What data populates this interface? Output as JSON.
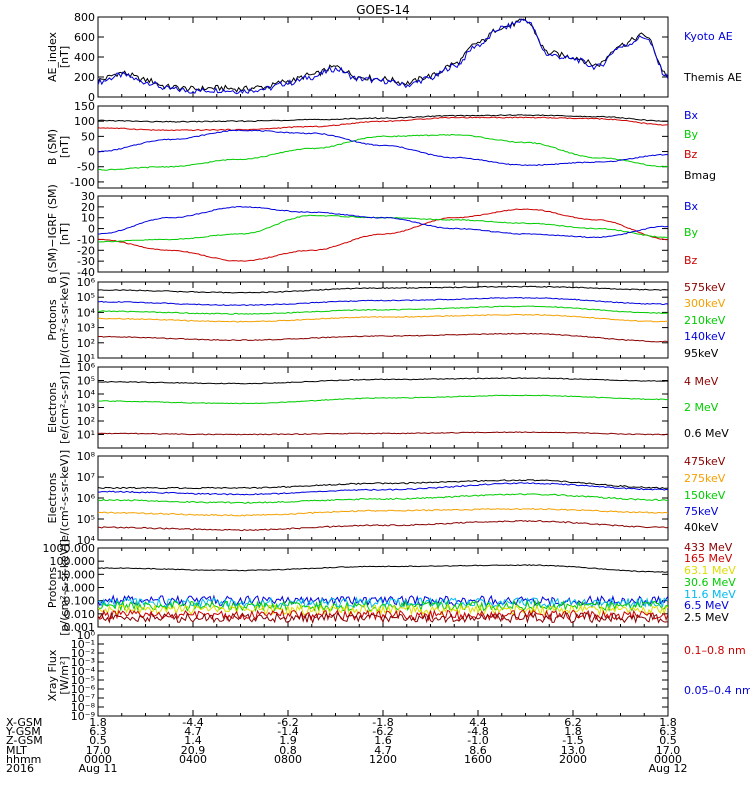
{
  "title": "GOES-14",
  "colors": {
    "axis": "#000000",
    "black": "#000000",
    "blue": "#0000dd",
    "red": "#cc0000",
    "green": "#00cc00",
    "orange": "#f5a000",
    "darkred": "#880000",
    "cyan": "#00bbee",
    "yellow": "#dddd00"
  },
  "chart_data": [
    {
      "type": "line",
      "ylabel": "AE_index\n[nT]",
      "ylim": [
        0,
        800
      ],
      "yscale": "linear",
      "yticks": [
        0,
        200,
        400,
        600,
        800
      ],
      "yticklabels": [
        "0",
        "200",
        "400",
        "600",
        "800"
      ],
      "series": [
        {
          "name": "Kyoto AE",
          "color": "blue",
          "x": [
            0,
            1,
            2,
            3,
            4,
            5,
            6,
            7,
            8,
            9,
            10,
            11,
            12,
            13,
            14,
            15,
            16,
            17,
            18,
            19,
            20,
            21,
            22,
            23,
            24
          ],
          "y": [
            150,
            220,
            150,
            80,
            60,
            70,
            60,
            80,
            140,
            200,
            280,
            180,
            160,
            120,
            190,
            310,
            520,
            690,
            770,
            420,
            380,
            300,
            500,
            600,
            200
          ]
        },
        {
          "name": "Themis AE",
          "color": "black",
          "x": [
            0,
            1,
            2,
            3,
            4,
            5,
            6,
            7,
            8,
            9,
            10,
            11,
            12,
            13,
            14,
            15,
            16,
            17,
            18,
            19,
            20,
            21,
            22,
            23,
            24
          ],
          "y": [
            170,
            240,
            170,
            100,
            80,
            90,
            80,
            100,
            160,
            220,
            300,
            200,
            180,
            140,
            210,
            330,
            540,
            700,
            760,
            440,
            400,
            320,
            520,
            620,
            220
          ]
        }
      ]
    },
    {
      "type": "line",
      "ylabel": "B (SM)\n[nT]",
      "ylim": [
        -120,
        150
      ],
      "yscale": "linear",
      "yticks": [
        -100,
        -50,
        0,
        50,
        100,
        150
      ],
      "yticklabels": [
        "-100",
        "-50",
        "0",
        "50",
        "100",
        "150"
      ],
      "series": [
        {
          "name": "Bx",
          "color": "blue",
          "x": [
            0,
            3,
            6,
            9,
            12,
            15,
            18,
            21,
            24
          ],
          "y": [
            0,
            40,
            70,
            60,
            20,
            -20,
            -45,
            -35,
            -10
          ]
        },
        {
          "name": "By",
          "color": "green",
          "x": [
            0,
            3,
            6,
            9,
            12,
            15,
            18,
            21,
            24
          ],
          "y": [
            -60,
            -50,
            -25,
            10,
            50,
            55,
            30,
            -20,
            -50
          ]
        },
        {
          "name": "Bz",
          "color": "red",
          "x": [
            0,
            3,
            6,
            9,
            12,
            15,
            18,
            21,
            24
          ],
          "y": [
            78,
            70,
            72,
            82,
            100,
            112,
            112,
            108,
            88
          ]
        },
        {
          "name": "Bmag",
          "color": "black",
          "x": [
            0,
            3,
            6,
            9,
            12,
            15,
            18,
            21,
            24
          ],
          "y": [
            102,
            98,
            100,
            105,
            110,
            118,
            120,
            115,
            100
          ]
        }
      ]
    },
    {
      "type": "line",
      "ylabel": "B (SM)−IGRF (SM)\n[nT]",
      "ylim": [
        -40,
        30
      ],
      "yscale": "linear",
      "yticks": [
        -40,
        -30,
        -20,
        -10,
        0,
        10,
        20,
        30
      ],
      "yticklabels": [
        "-40",
        "-30",
        "-20",
        "-10",
        "0",
        "10",
        "20",
        "30"
      ],
      "series": [
        {
          "name": "Bx",
          "color": "blue",
          "x": [
            0,
            3,
            6,
            9,
            12,
            15,
            18,
            21,
            24
          ],
          "y": [
            -5,
            10,
            20,
            15,
            10,
            0,
            -5,
            -8,
            2
          ]
        },
        {
          "name": "By",
          "color": "green",
          "x": [
            0,
            3,
            6,
            9,
            12,
            15,
            18,
            21,
            24
          ],
          "y": [
            -12,
            -10,
            -5,
            12,
            10,
            8,
            5,
            0,
            -8
          ]
        },
        {
          "name": "Bz",
          "color": "red",
          "x": [
            0,
            3,
            6,
            9,
            12,
            15,
            18,
            21,
            24
          ],
          "y": [
            -10,
            -20,
            -30,
            -20,
            -5,
            10,
            18,
            8,
            -10
          ]
        }
      ]
    },
    {
      "type": "line",
      "ylabel": "Protons\n[p/(cm²-s-sr-keV)]",
      "ylim": [
        10,
        1000000
      ],
      "yscale": "log",
      "yticks": [
        10,
        100,
        1000,
        10000,
        100000,
        1000000
      ],
      "yticklabels": [
        "10¹",
        "10²",
        "10³",
        "10⁴",
        "10⁵",
        "10⁶"
      ],
      "series": [
        {
          "name": "575keV",
          "color": "darkred",
          "x": [
            0,
            6,
            12,
            18,
            24
          ],
          "y": [
            250,
            150,
            280,
            400,
            120
          ]
        },
        {
          "name": "300keV",
          "color": "orange",
          "x": [
            0,
            6,
            12,
            18,
            24
          ],
          "y": [
            4000,
            2500,
            5000,
            7000,
            2500
          ]
        },
        {
          "name": "210keV",
          "color": "green",
          "x": [
            0,
            6,
            12,
            18,
            24
          ],
          "y": [
            12000,
            8000,
            15000,
            25000,
            9000
          ]
        },
        {
          "name": "140keV",
          "color": "blue",
          "x": [
            0,
            6,
            12,
            18,
            24
          ],
          "y": [
            50000,
            30000,
            60000,
            90000,
            35000
          ]
        },
        {
          "name": "95keV",
          "color": "black",
          "x": [
            0,
            6,
            12,
            18,
            24
          ],
          "y": [
            300000,
            200000,
            400000,
            500000,
            300000
          ]
        }
      ]
    },
    {
      "type": "line",
      "ylabel": "Electrons\n[e/(cm²-s-sr)]",
      "ylim": [
        1,
        1000000
      ],
      "yscale": "log",
      "yticks": [
        10,
        100,
        1000,
        10000,
        100000,
        1000000
      ],
      "yticklabels": [
        "10¹",
        "10²",
        "10³",
        "10⁴",
        "10⁵",
        "10⁶"
      ],
      "series": [
        {
          "name": "4 MeV",
          "color": "darkred",
          "x": [
            0,
            6,
            12,
            18,
            24
          ],
          "y": [
            12,
            10,
            12,
            15,
            10
          ]
        },
        {
          "name": "2 MeV",
          "color": "green",
          "x": [
            0,
            6,
            12,
            18,
            24
          ],
          "y": [
            3000,
            2000,
            5000,
            8000,
            4000
          ]
        },
        {
          "name": "0.6 MeV",
          "color": "black",
          "x": [
            0,
            6,
            12,
            18,
            24
          ],
          "y": [
            80000,
            60000,
            120000,
            150000,
            90000
          ]
        }
      ]
    },
    {
      "type": "line",
      "ylabel": "Electrons\n[e/(cm²-s-sr-keV)]",
      "ylim": [
        10000,
        100000000
      ],
      "yscale": "log",
      "yticks": [
        10000,
        100000,
        1000000,
        10000000,
        100000000
      ],
      "yticklabels": [
        "10⁴",
        "10⁵",
        "10⁶",
        "10⁷",
        "10⁸"
      ],
      "series": [
        {
          "name": "475keV",
          "color": "darkred",
          "x": [
            0,
            6,
            12,
            18,
            24
          ],
          "y": [
            40000,
            30000,
            50000,
            80000,
            40000
          ]
        },
        {
          "name": "275keV",
          "color": "orange",
          "x": [
            0,
            6,
            12,
            18,
            24
          ],
          "y": [
            200000,
            150000,
            250000,
            300000,
            200000
          ]
        },
        {
          "name": "150keV",
          "color": "green",
          "x": [
            0,
            6,
            12,
            18,
            24
          ],
          "y": [
            800000,
            600000,
            900000,
            1500000,
            800000
          ]
        },
        {
          "name": "75keV",
          "color": "blue",
          "x": [
            0,
            6,
            12,
            18,
            24
          ],
          "y": [
            2000000,
            1500000,
            2500000,
            5000000,
            2500000
          ]
        },
        {
          "name": "40keV",
          "color": "black",
          "x": [
            0,
            6,
            12,
            18,
            24
          ],
          "y": [
            3000000,
            3000000,
            5000000,
            7000000,
            3000000
          ]
        }
      ]
    },
    {
      "type": "line",
      "ylabel": "Protons\n[p/(cm²-s-sr-keV)]",
      "ylim": [
        0.001,
        1000
      ],
      "yscale": "log",
      "yticks": [
        0.001,
        0.01,
        0.1,
        1,
        10,
        100,
        1000
      ],
      "yticklabels": [
        "0.001",
        "0.010",
        "0.100",
        "1.000",
        "10.000",
        "100.000",
        "1000.000"
      ],
      "series": [
        {
          "name": "433 MeV",
          "color": "darkred",
          "x": [
            0,
            6,
            12,
            18,
            24
          ],
          "y": [
            0.005,
            0.005,
            0.005,
            0.005,
            0.005
          ]
        },
        {
          "name": "165 MeV",
          "color": "red",
          "x": [
            0,
            6,
            12,
            18,
            24
          ],
          "y": [
            0.008,
            0.008,
            0.008,
            0.008,
            0.008
          ]
        },
        {
          "name": "63.1 MeV",
          "color": "yellow",
          "x": [
            0,
            6,
            12,
            18,
            24
          ],
          "y": [
            0.02,
            0.02,
            0.02,
            0.02,
            0.02
          ]
        },
        {
          "name": "30.6 MeV",
          "color": "green",
          "x": [
            0,
            6,
            12,
            18,
            24
          ],
          "y": [
            0.04,
            0.04,
            0.04,
            0.04,
            0.04
          ]
        },
        {
          "name": "11.6 MeV",
          "color": "cyan",
          "x": [
            0,
            6,
            12,
            18,
            24
          ],
          "y": [
            0.07,
            0.07,
            0.07,
            0.07,
            0.07
          ]
        },
        {
          "name": "6.5 MeV",
          "color": "blue",
          "x": [
            0,
            6,
            12,
            18,
            24
          ],
          "y": [
            0.1,
            0.1,
            0.1,
            0.1,
            0.1
          ]
        },
        {
          "name": "2.5 MeV",
          "color": "black",
          "x": [
            0,
            6,
            12,
            18,
            24
          ],
          "y": [
            30,
            20,
            40,
            50,
            15
          ]
        }
      ]
    },
    {
      "type": "line",
      "ylabel": "Xray Flux\n[W/m²]",
      "ylim": [
        1e-09,
        1
      ],
      "yscale": "log",
      "yticks": [
        1e-09,
        1e-08,
        1e-07,
        1e-06,
        1e-05,
        0.0001,
        0.001,
        0.01,
        0.1,
        1
      ],
      "yticklabels": [
        "10⁻⁹",
        "10⁻⁸",
        "10⁻⁷",
        "10⁻⁶",
        "10⁻⁵",
        "10⁻⁴",
        "10⁻³",
        "10⁻²",
        "10⁻¹",
        "10⁰"
      ],
      "series": [
        {
          "name": "0.1–0.8 nm",
          "color": "red",
          "x": [],
          "y": []
        },
        {
          "name": "0.05–0.4 nm",
          "color": "blue",
          "x": [],
          "y": []
        }
      ]
    }
  ],
  "time_axis": {
    "row_labels": [
      "X-GSM",
      "Y-GSM",
      "Z-GSM",
      "MLT",
      "hhmm",
      "2016"
    ],
    "columns": [
      [
        "1.8",
        "6.3",
        "0.5",
        "17.0",
        "0000",
        "Aug 11"
      ],
      [
        "-4.4",
        "4.7",
        "1.4",
        "20.9",
        "0400",
        ""
      ],
      [
        "-6.2",
        "-1.4",
        "1.9",
        "0.8",
        "0800",
        ""
      ],
      [
        "-1.8",
        "-6.2",
        "1.6",
        "4.7",
        "1200",
        ""
      ],
      [
        "4.4",
        "-4.8",
        "-1.0",
        "8.6",
        "1600",
        ""
      ],
      [
        "6.2",
        "1.8",
        "-1.5",
        "13.0",
        "2000",
        ""
      ],
      [
        "1.8",
        "6.3",
        "0.5",
        "17.0",
        "0000",
        "Aug 12"
      ]
    ]
  }
}
